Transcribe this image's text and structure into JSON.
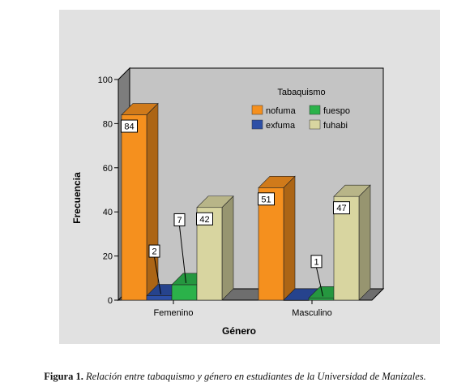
{
  "chart_data": {
    "type": "bar",
    "categories": [
      "Femenino",
      "Masculino"
    ],
    "xlabel": "Género",
    "ylabel": "Frecuencia",
    "ylim": [
      0,
      100
    ],
    "yticks": [
      0,
      20,
      40,
      60,
      80,
      100
    ],
    "legend": {
      "title": "Tabaquismo",
      "placement": "top-right"
    },
    "series": [
      {
        "name": "nofuma",
        "color": "#f5901e",
        "values": [
          84,
          51
        ]
      },
      {
        "name": "exfuma",
        "color": "#2d4fa6",
        "values": [
          2,
          0
        ]
      },
      {
        "name": "fuespo",
        "color": "#2bb24a",
        "values": [
          7,
          1
        ]
      },
      {
        "name": "fuhabi",
        "color": "#d8d5a0",
        "values": [
          42,
          47
        ]
      }
    ],
    "data_labels": [
      {
        "series": "nofuma",
        "category": "Femenino",
        "text": "84"
      },
      {
        "series": "exfuma",
        "category": "Femenino",
        "text": "2"
      },
      {
        "series": "fuespo",
        "category": "Femenino",
        "text": "7"
      },
      {
        "series": "fuhabi",
        "category": "Femenino",
        "text": "42"
      },
      {
        "series": "nofuma",
        "category": "Masculino",
        "text": "51"
      },
      {
        "series": "fuespo",
        "category": "Masculino",
        "text": "1"
      },
      {
        "series": "fuhabi",
        "category": "Masculino",
        "text": "47"
      }
    ],
    "grid": false
  },
  "caption": {
    "label": "Figura 1.",
    "text": "Relación entre tabaquismo y género en estudiantes de la Universidad de Manizales."
  }
}
